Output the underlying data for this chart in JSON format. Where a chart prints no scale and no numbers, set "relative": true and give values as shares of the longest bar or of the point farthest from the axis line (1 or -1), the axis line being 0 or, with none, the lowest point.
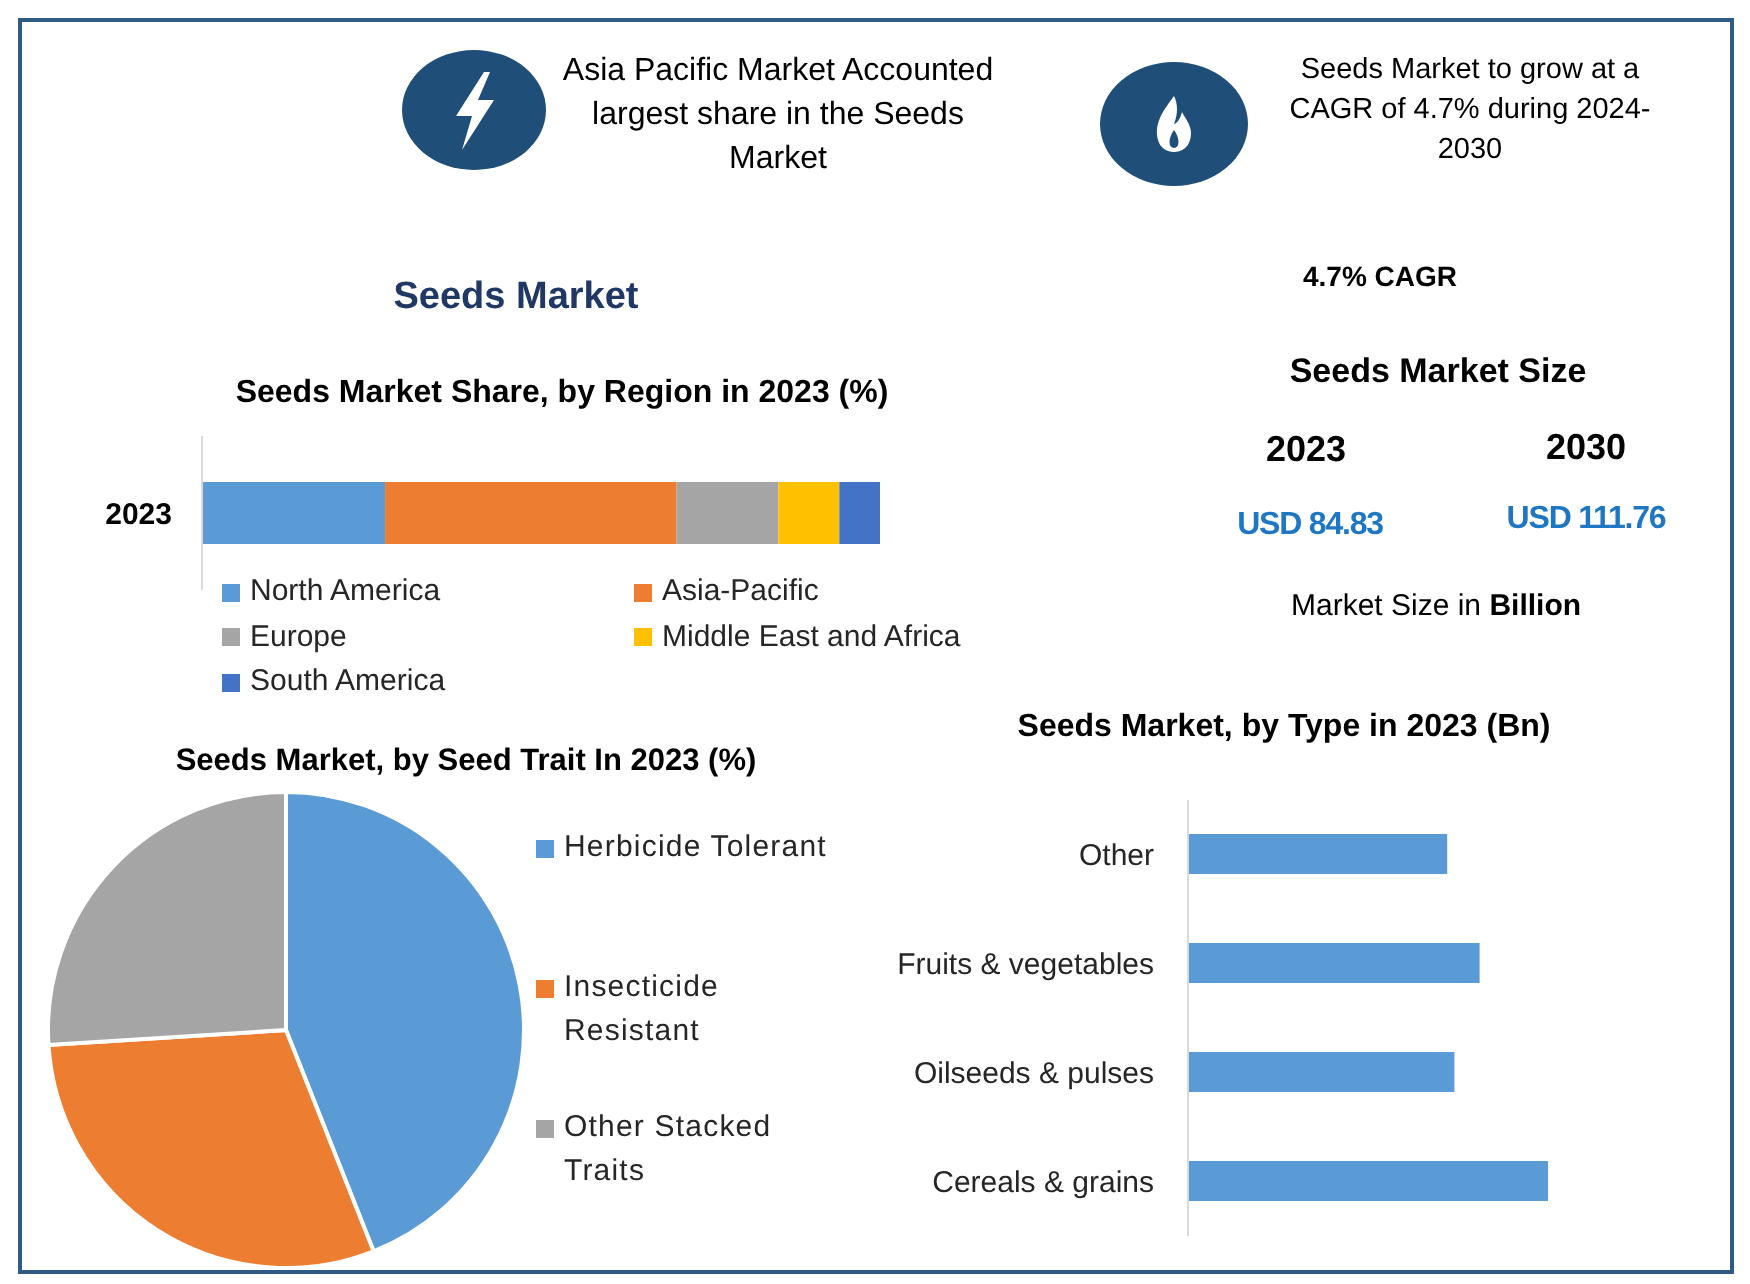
{
  "chart_data": [
    {
      "type": "other",
      "annotations": [
        "Asia Pacific Market Accounted largest share in the Seeds Market",
        "Seeds Market to grow at a CAGR of 4.7% during 2024-2030"
      ]
    },
    {
      "type": "bar",
      "title": "Seeds Market",
      "subtitle": "Seeds Market Share, by Region in 2023 (%)",
      "orientation": "horizontal",
      "stacked": true,
      "relative": true,
      "categories": [
        "2023"
      ],
      "series": [
        {
          "name": "North America",
          "color": "#5b9bd5",
          "values": [
            0.27
          ]
        },
        {
          "name": "Asia-Pacific",
          "color": "#ed7d31",
          "values": [
            0.43
          ]
        },
        {
          "name": "Europe",
          "color": "#a5a5a5",
          "values": [
            0.15
          ]
        },
        {
          "name": "Middle East and Africa",
          "color": "#ffc000",
          "values": [
            0.09
          ]
        },
        {
          "name": "South America",
          "color": "#4472c4",
          "values": [
            0.06
          ]
        }
      ],
      "legend": "bottom"
    },
    {
      "type": "other",
      "title": "Seeds Market Size",
      "annotations": [
        "4.7% CAGR",
        "2023",
        "2030",
        "USD 84.83",
        "USD 111.76",
        "Market Size in Billion"
      ]
    },
    {
      "type": "pie",
      "title": "Seeds Market, by Seed Trait In 2023 (%)",
      "categories": [
        "Herbicide Tolerant",
        "Insecticide Resistant",
        "Other Stacked Traits"
      ],
      "values": [
        44,
        30,
        26
      ],
      "colors": [
        "#5b9bd5",
        "#ed7d31",
        "#a5a5a5"
      ],
      "legend": "right"
    },
    {
      "type": "bar",
      "title": "Seeds Market, by Type in 2023 (Bn)",
      "orientation": "horizontal",
      "relative": true,
      "categories": [
        "Other",
        "Fruits & vegetables",
        "Oilseeds & pulses",
        "Cereals & grains"
      ],
      "values": [
        0.72,
        0.81,
        0.74,
        1
      ],
      "color": "#5b9bd5"
    }
  ]
}
